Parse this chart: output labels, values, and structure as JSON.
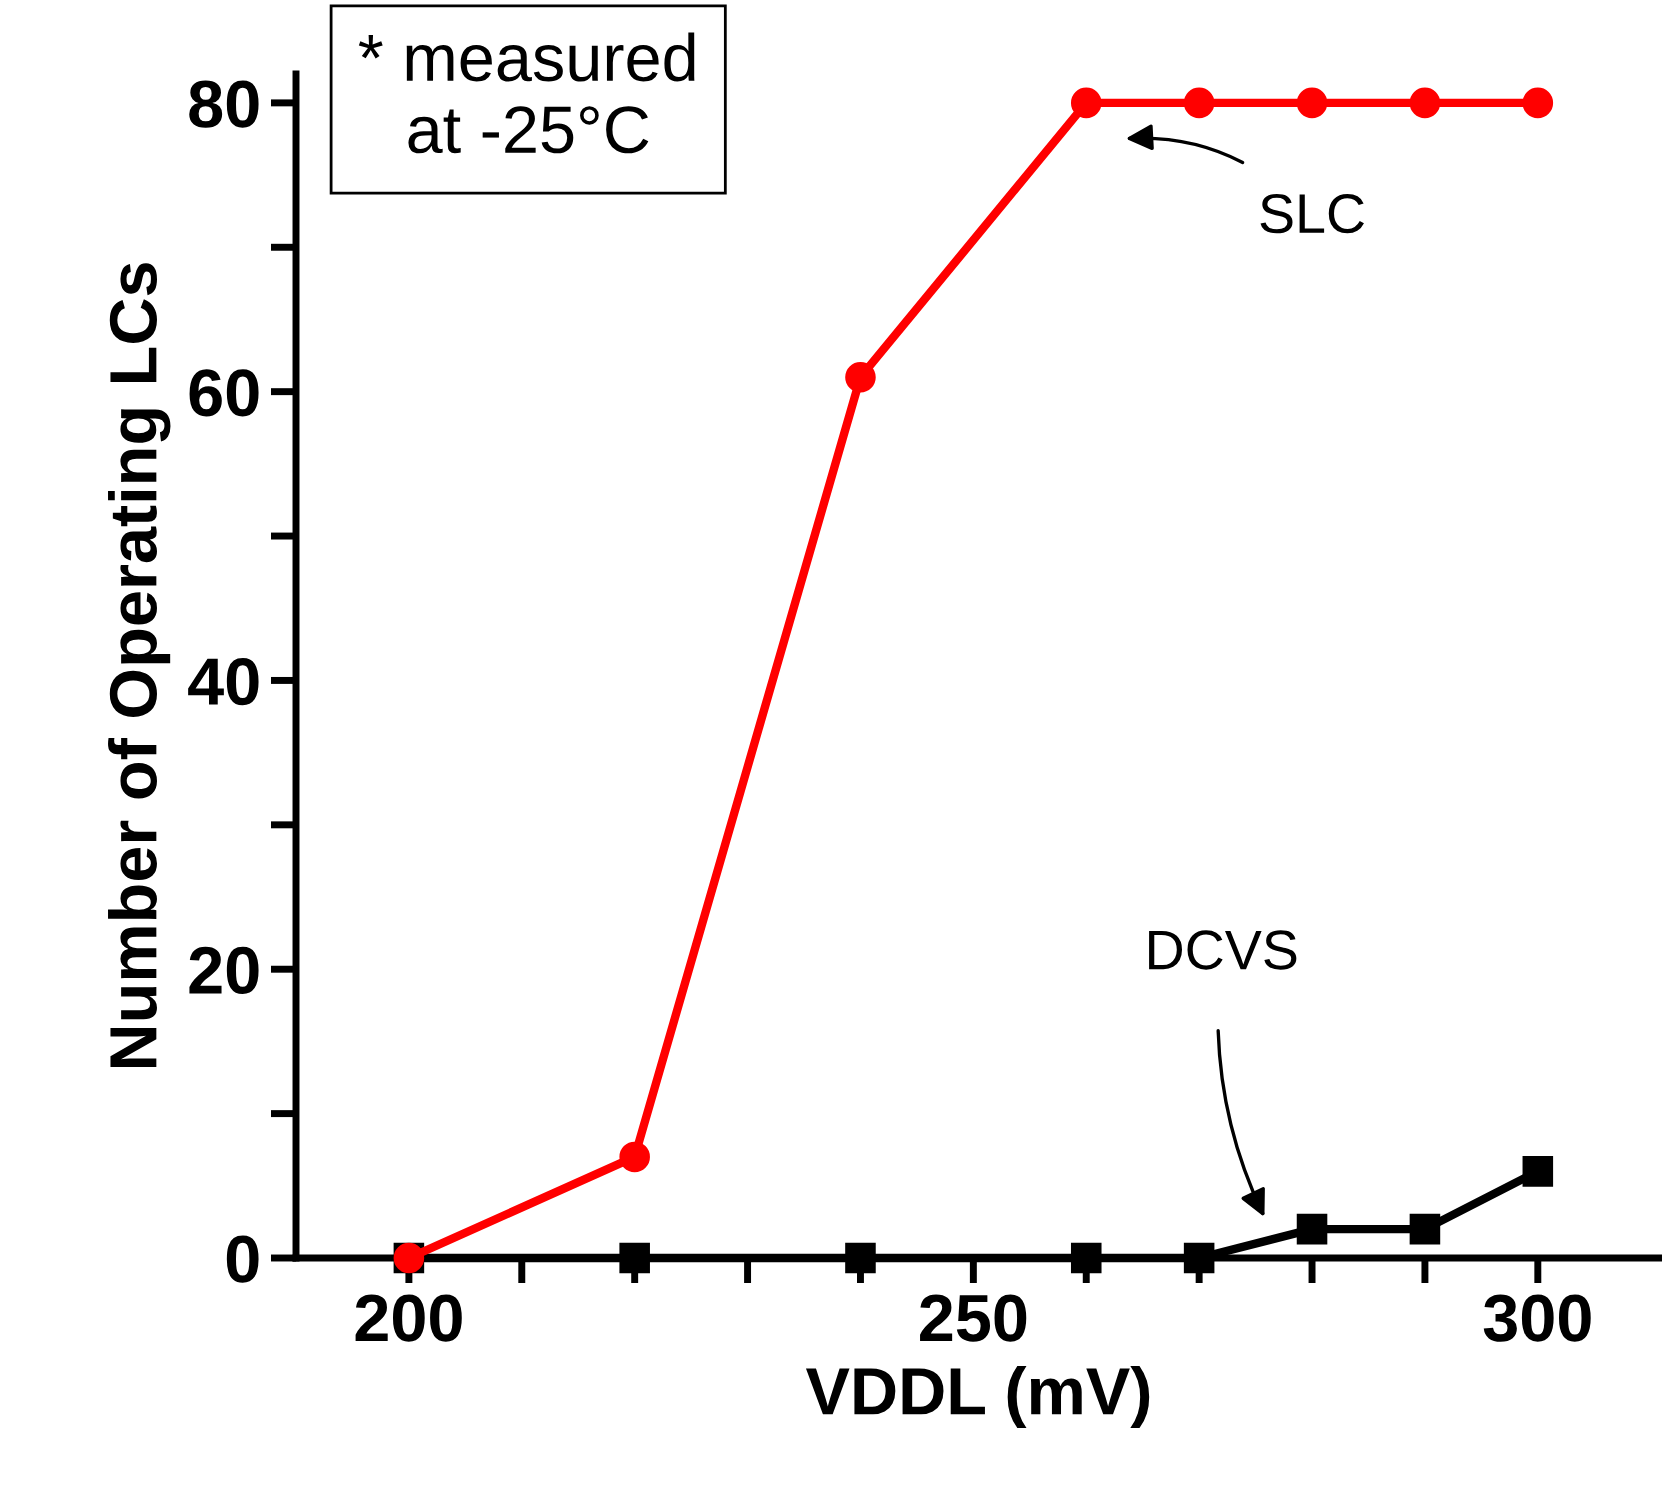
{
  "chart_data": {
    "type": "line",
    "xlabel": "VDDL (mV)",
    "ylabel": "Number of Operating LCs",
    "x": [
      200,
      220,
      240,
      260,
      270,
      280,
      290,
      300
    ],
    "series": [
      {
        "name": "DCVS",
        "color": "#000000",
        "marker": "square",
        "values": [
          0,
          0,
          0,
          0,
          0,
          2,
          2,
          6
        ]
      },
      {
        "name": "SLC",
        "color": "#ff0000",
        "marker": "circle",
        "values": [
          0,
          7,
          61,
          80,
          80,
          80,
          80,
          80
        ]
      }
    ],
    "xlim": [
      190,
      311
    ],
    "ylim": [
      0,
      82
    ],
    "xticks": [
      200,
      {
        "value": 210,
        "label": null
      },
      {
        "value": 220,
        "label": null
      },
      {
        "value": 230,
        "label": null
      },
      {
        "value": 240,
        "label": null
      },
      250,
      {
        "value": 260,
        "label": null
      },
      {
        "value": 270,
        "label": null
      },
      {
        "value": 280,
        "label": null
      },
      {
        "value": 290,
        "label": null
      },
      300
    ],
    "yticks": [
      0,
      {
        "value": 10,
        "label": null
      },
      20,
      {
        "value": 30,
        "label": null
      },
      40,
      {
        "value": 50,
        "label": null
      },
      60,
      {
        "value": 70,
        "label": null
      },
      80
    ],
    "grid": false,
    "legend": false,
    "line_style": "solid",
    "annotations": [
      "* measured\nat -25°C"
    ]
  }
}
